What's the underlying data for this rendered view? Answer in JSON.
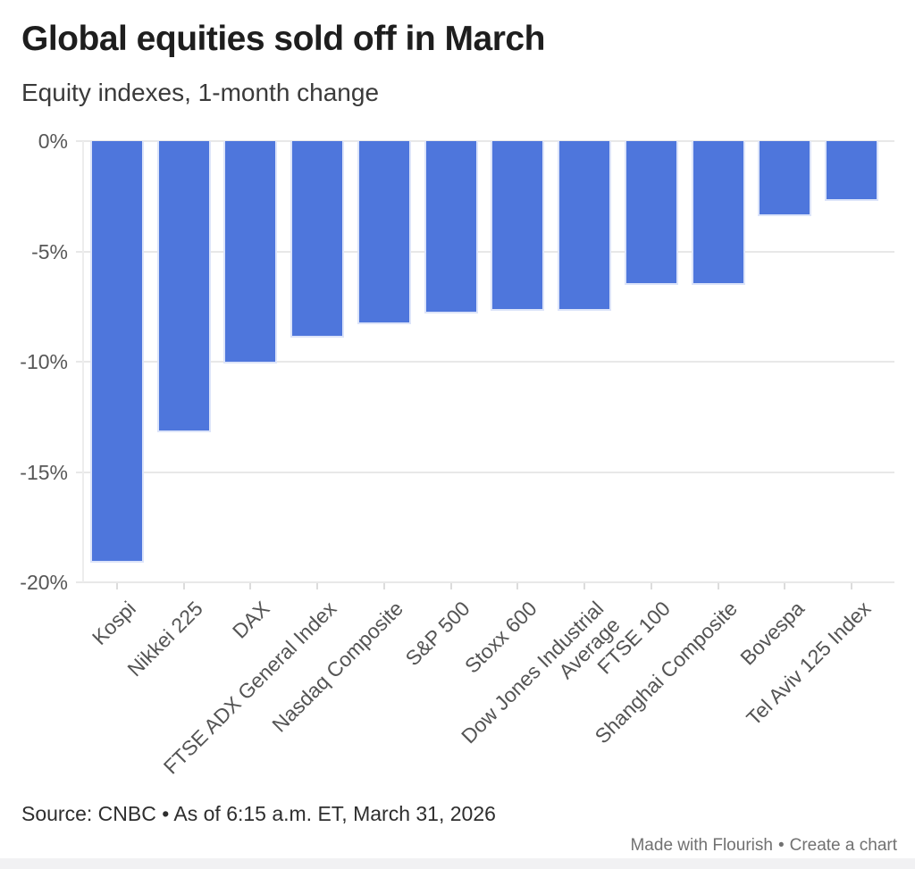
{
  "header": {
    "title": "Global equities sold off in March",
    "subtitle": "Equity indexes, 1-month change"
  },
  "chart_data": {
    "type": "bar",
    "title": "Global equities sold off in March",
    "subtitle": "Equity indexes, 1-month change",
    "categories": [
      "Kospi",
      "Nikkei 225",
      "DAX",
      "FTSE ADX General Index",
      "Nasdaq Composite",
      "S&P 500",
      "Stoxx 600",
      "Dow Jones Industrial Average",
      "FTSE 100",
      "Shanghai Composite",
      "Bovespa",
      "Tel Aviv 125 Index"
    ],
    "values": [
      -19.1,
      -13.2,
      -10.1,
      -8.9,
      -8.3,
      -7.8,
      -7.7,
      -7.7,
      -6.5,
      -6.5,
      -3.4,
      -2.7
    ],
    "unit": "%",
    "xlabel": "",
    "ylabel": "",
    "ylim": [
      -20,
      0
    ],
    "ytick_values": [
      0,
      -5,
      -10,
      -15,
      -20
    ],
    "ytick_labels": [
      "0%",
      "-5%",
      "-10%",
      "-15%",
      "-20%"
    ],
    "grid": true,
    "legend": "none",
    "bar_color": "#4e76dc",
    "wrap_category_index": 7
  },
  "footer": {
    "source": "Source: CNBC • As of 6:15 a.m. ET, March 31, 2026",
    "credit_made": "Made with Flourish",
    "credit_sep": "•",
    "credit_create": "Create a chart"
  }
}
